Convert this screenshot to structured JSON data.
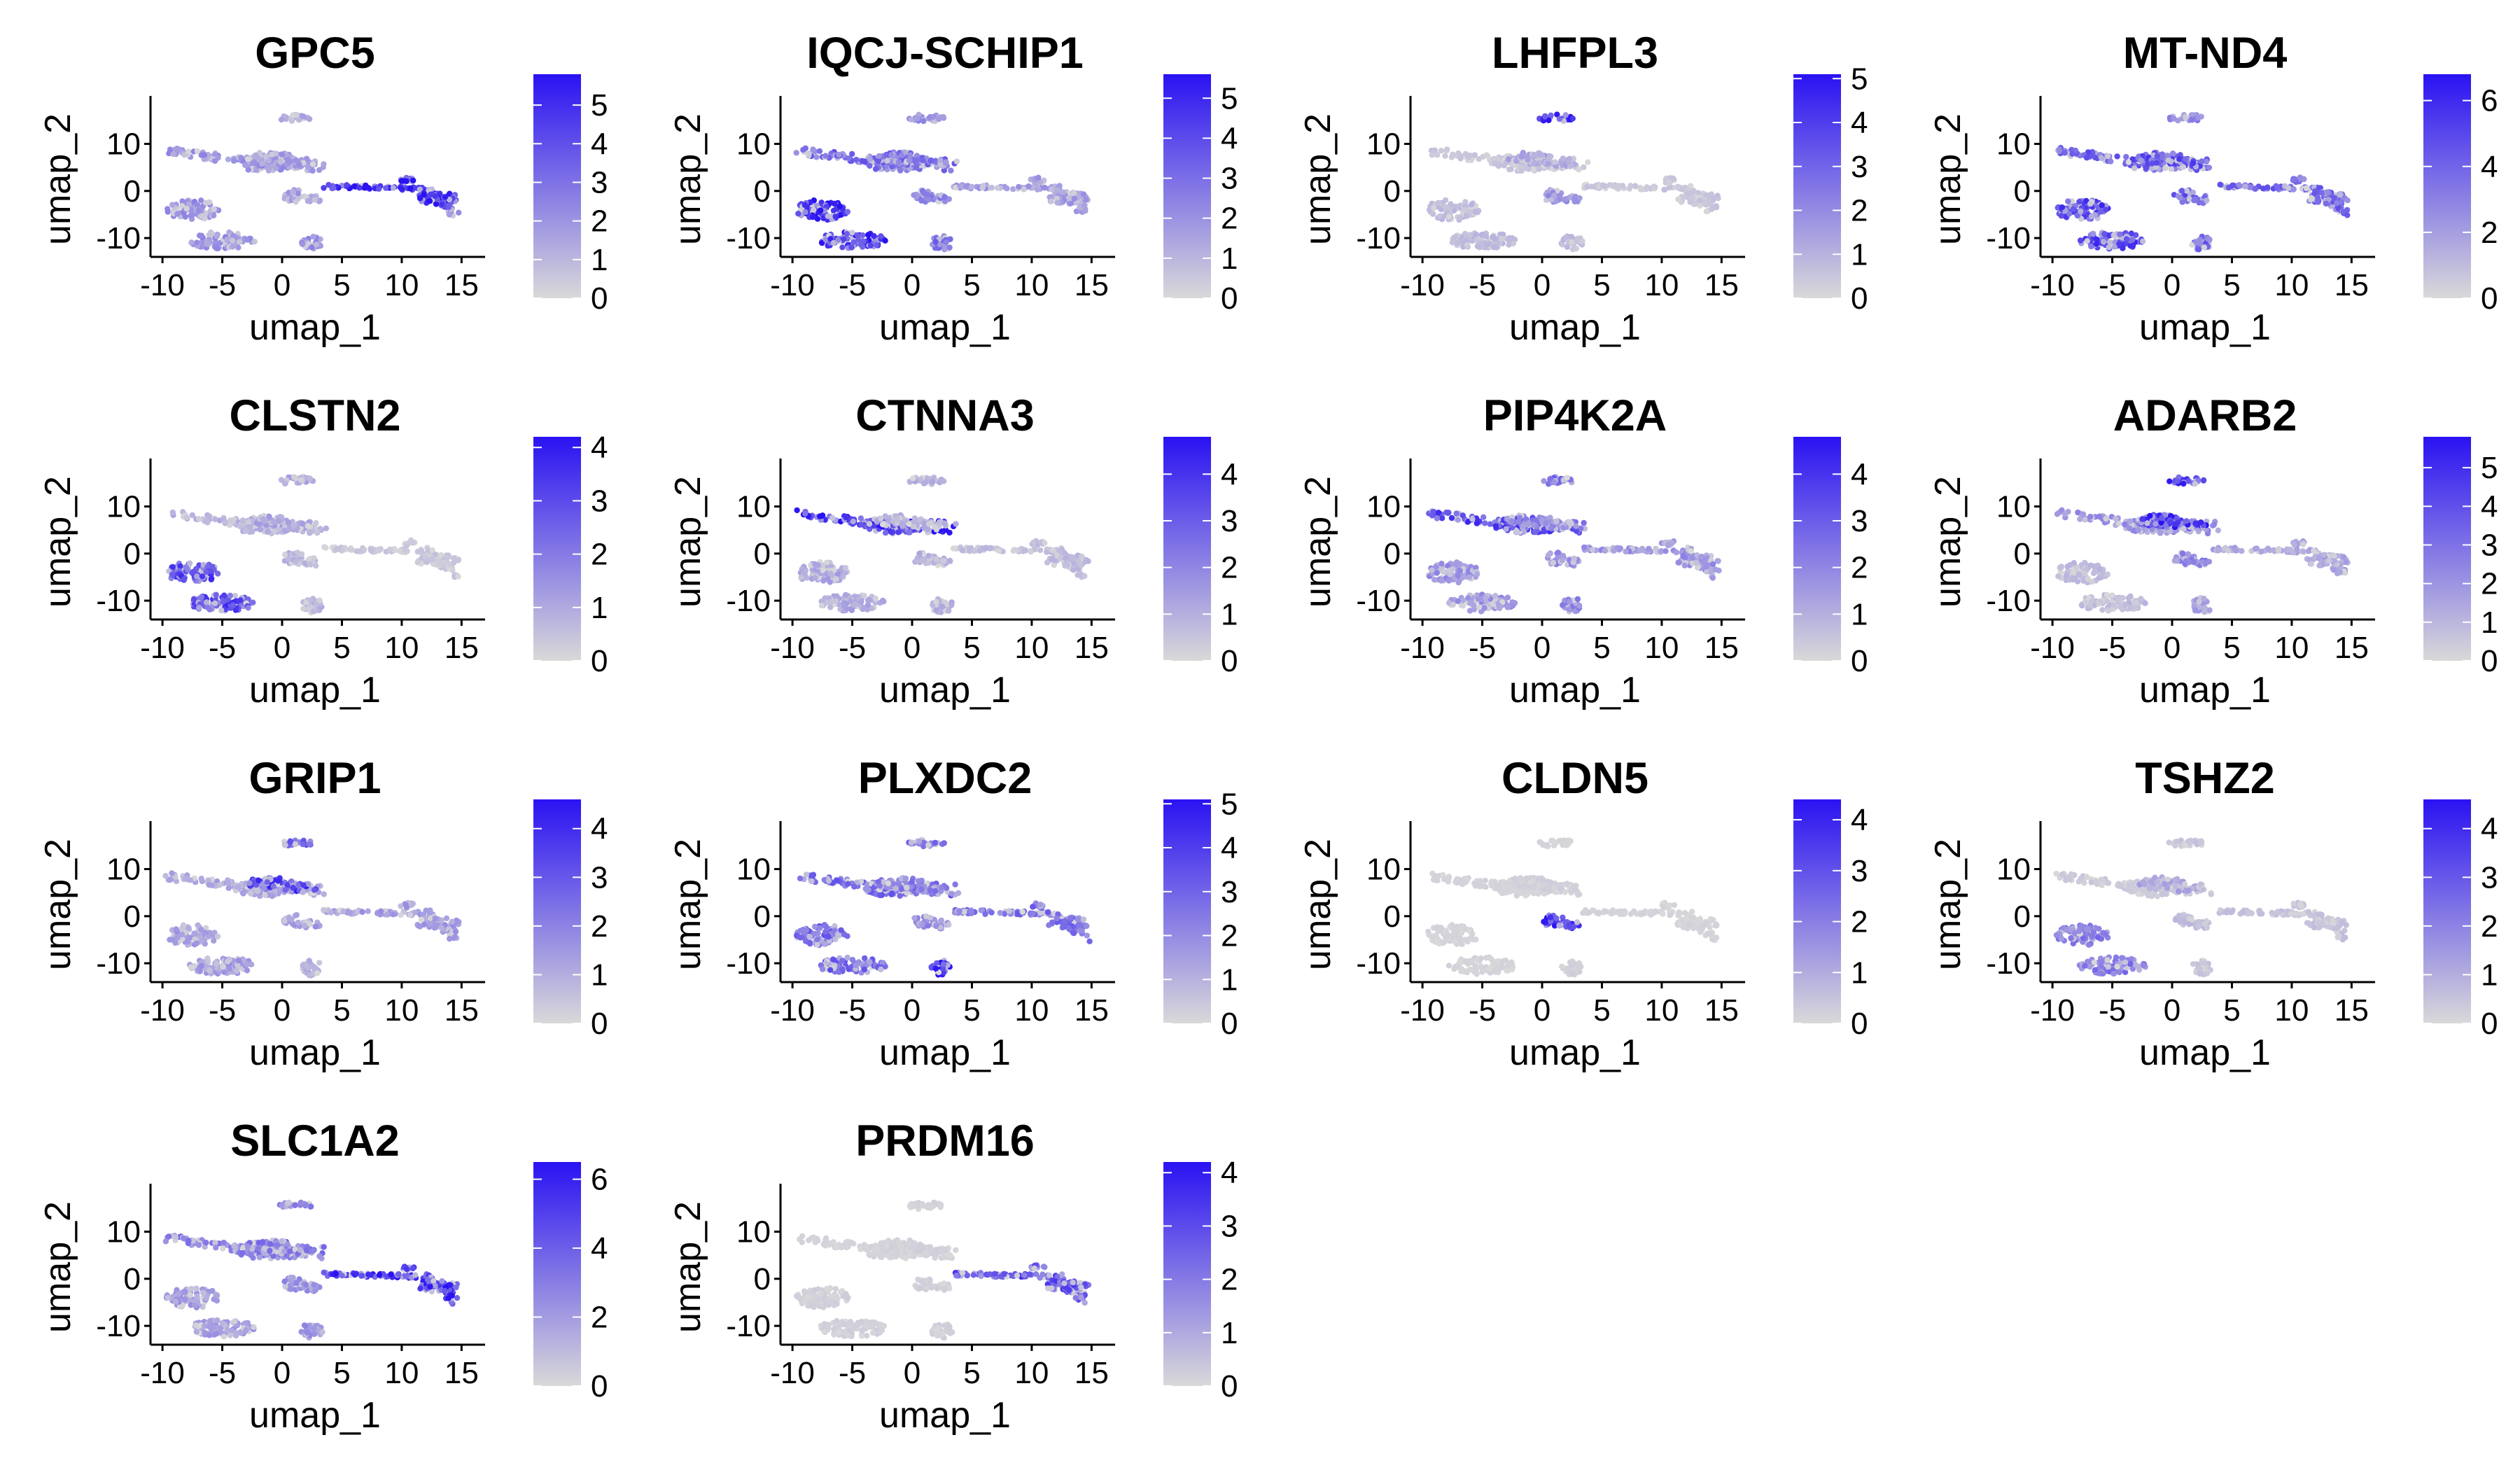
{
  "figure": {
    "colors": {
      "low": "#d9d9d9",
      "high": "#2a12f2",
      "axis": "#000000",
      "background": "#ffffff"
    }
  },
  "chart_data": [
    {
      "type": "scatter",
      "title": "GPC5",
      "xlabel": "umap_1",
      "ylabel": "umap_2",
      "xticks": [
        -10,
        -5,
        0,
        5,
        10,
        15
      ],
      "yticks": [
        -10,
        0,
        10
      ],
      "xlim": [
        -11,
        16.5
      ],
      "ylim": [
        -14,
        19
      ],
      "colorbar": {
        "max": 5.8,
        "ticks": [
          0,
          1,
          2,
          3,
          4,
          5
        ]
      },
      "expression": {
        "ctx": 0.35,
        "pairs": 0.35,
        "mid": 0.3,
        "top": 0.25,
        "small_a": 0.3,
        "small_b": 0.35,
        "tail": 0.85
      }
    },
    {
      "type": "scatter",
      "title": "IQCJ-SCHIP1",
      "xlabel": "umap_1",
      "ylabel": "umap_2",
      "xticks": [
        -10,
        -5,
        0,
        5,
        10,
        15
      ],
      "yticks": [
        -10,
        0,
        10
      ],
      "xlim": [
        -11,
        16.5
      ],
      "ylim": [
        -14,
        19
      ],
      "colorbar": {
        "max": 5.6,
        "ticks": [
          0,
          1,
          2,
          3,
          4,
          5
        ]
      },
      "expression": {
        "ctx": 0.55,
        "pairs": 0.85,
        "mid": 0.5,
        "top": 0.35,
        "small_a": 0.4,
        "small_b": 0.5,
        "tail": 0.3
      }
    },
    {
      "type": "scatter",
      "title": "LHFPL3",
      "xlabel": "umap_1",
      "ylabel": "umap_2",
      "xticks": [
        -10,
        -5,
        0,
        5,
        10,
        15
      ],
      "yticks": [
        -10,
        0,
        10
      ],
      "xlim": [
        -11,
        16.5
      ],
      "ylim": [
        -14,
        19
      ],
      "colorbar": {
        "max": 5.1,
        "ticks": [
          0,
          1,
          2,
          3,
          4,
          5
        ]
      },
      "expression": {
        "ctx": 0.1,
        "pairs": 0.15,
        "mid": 0.25,
        "top": 0.9,
        "small_a": 0.35,
        "small_b": 0.15,
        "tail": 0.1
      }
    },
    {
      "type": "scatter",
      "title": "MT-ND4",
      "xlabel": "umap_1",
      "ylabel": "umap_2",
      "xticks": [
        -10,
        -5,
        0,
        5,
        10,
        15
      ],
      "yticks": [
        -10,
        0,
        10
      ],
      "xlim": [
        -11,
        16.5
      ],
      "ylim": [
        -14,
        19
      ],
      "colorbar": {
        "max": 6.8,
        "ticks": [
          0,
          2,
          4,
          6
        ]
      },
      "expression": {
        "ctx": 0.6,
        "pairs": 0.7,
        "mid": 0.65,
        "top": 0.4,
        "small_a": 0.6,
        "small_b": 0.55,
        "tail": 0.55
      }
    },
    {
      "type": "scatter",
      "title": "CLSTN2",
      "xlabel": "umap_1",
      "ylabel": "umap_2",
      "xticks": [
        -10,
        -5,
        0,
        5,
        10,
        15
      ],
      "yticks": [
        -10,
        0,
        10
      ],
      "xlim": [
        -11,
        16.5
      ],
      "ylim": [
        -14,
        19
      ],
      "colorbar": {
        "max": 4.2,
        "ticks": [
          0,
          1,
          2,
          3,
          4
        ]
      },
      "expression": {
        "ctx": 0.2,
        "pairs": 0.7,
        "mid": 0.25,
        "top": 0.25,
        "small_a": 0.2,
        "small_b": 0.2,
        "tail": 0.1
      }
    },
    {
      "type": "scatter",
      "title": "CTNNA3",
      "xlabel": "umap_1",
      "ylabel": "umap_2",
      "xticks": [
        -10,
        -5,
        0,
        5,
        10,
        15
      ],
      "yticks": [
        -10,
        0,
        10
      ],
      "xlim": [
        -11,
        16.5
      ],
      "ylim": [
        -14,
        19
      ],
      "colorbar": {
        "max": 4.8,
        "ticks": [
          0,
          1,
          2,
          3,
          4
        ]
      },
      "expression": {
        "ctx": 0.8,
        "pairs": 0.25,
        "mid": 0.2,
        "top": 0.2,
        "small_a": 0.2,
        "small_b": 0.2,
        "tail": 0.15
      }
    },
    {
      "type": "scatter",
      "title": "PIP4K2A",
      "xlabel": "umap_1",
      "ylabel": "umap_2",
      "xticks": [
        -10,
        -5,
        0,
        5,
        10,
        15
      ],
      "yticks": [
        -10,
        0,
        10
      ],
      "xlim": [
        -11,
        16.5
      ],
      "ylim": [
        -14,
        19
      ],
      "colorbar": {
        "max": 4.8,
        "ticks": [
          0,
          1,
          2,
          3,
          4
        ]
      },
      "expression": {
        "ctx": 0.7,
        "pairs": 0.35,
        "mid": 0.4,
        "top": 0.55,
        "small_a": 0.35,
        "small_b": 0.4,
        "tail": 0.35
      }
    },
    {
      "type": "scatter",
      "title": "ADARB2",
      "xlabel": "umap_1",
      "ylabel": "umap_2",
      "xticks": [
        -10,
        -5,
        0,
        5,
        10,
        15
      ],
      "yticks": [
        -10,
        0,
        10
      ],
      "xlim": [
        -11,
        16.5
      ],
      "ylim": [
        -14,
        19
      ],
      "colorbar": {
        "max": 5.8,
        "ticks": [
          0,
          1,
          2,
          3,
          4,
          5
        ]
      },
      "expression": {
        "ctx": 0.35,
        "pairs": 0.15,
        "mid": 0.8,
        "top": 0.75,
        "small_a": 0.4,
        "small_b": 0.3,
        "tail": 0.25
      }
    },
    {
      "type": "scatter",
      "title": "GRIP1",
      "xlabel": "umap_1",
      "ylabel": "umap_2",
      "xticks": [
        -10,
        -5,
        0,
        5,
        10,
        15
      ],
      "yticks": [
        -10,
        0,
        10
      ],
      "xlim": [
        -11,
        16.5
      ],
      "ylim": [
        -14,
        19
      ],
      "colorbar": {
        "max": 4.6,
        "ticks": [
          0,
          1,
          2,
          3,
          4
        ]
      },
      "expression": {
        "ctx": 0.25,
        "pairs": 0.3,
        "mid": 0.75,
        "top": 0.55,
        "small_a": 0.3,
        "small_b": 0.2,
        "tail": 0.3
      }
    },
    {
      "type": "scatter",
      "title": "PLXDC2",
      "xlabel": "umap_1",
      "ylabel": "umap_2",
      "xticks": [
        -10,
        -5,
        0,
        5,
        10,
        15
      ],
      "yticks": [
        -10,
        0,
        10
      ],
      "xlim": [
        -11,
        16.5
      ],
      "ylim": [
        -14,
        19
      ],
      "colorbar": {
        "max": 5.1,
        "ticks": [
          0,
          1,
          2,
          3,
          4,
          5
        ]
      },
      "expression": {
        "ctx": 0.55,
        "pairs": 0.55,
        "mid": 0.45,
        "top": 0.5,
        "small_a": 0.4,
        "small_b": 0.85,
        "tail": 0.5
      }
    },
    {
      "type": "scatter",
      "title": "CLDN5",
      "xlabel": "umap_1",
      "ylabel": "umap_2",
      "xticks": [
        -10,
        -5,
        0,
        5,
        10,
        15
      ],
      "yticks": [
        -10,
        0,
        10
      ],
      "xlim": [
        -11,
        16.5
      ],
      "ylim": [
        -14,
        19
      ],
      "colorbar": {
        "max": 4.4,
        "ticks": [
          0,
          1,
          2,
          3,
          4
        ]
      },
      "expression": {
        "ctx": 0.03,
        "pairs": 0.03,
        "mid": 0.05,
        "top": 0.03,
        "small_a": 0.85,
        "small_b": 0.05,
        "tail": 0.03
      }
    },
    {
      "type": "scatter",
      "title": "TSHZ2",
      "xlabel": "umap_1",
      "ylabel": "umap_2",
      "xticks": [
        -10,
        -5,
        0,
        5,
        10,
        15
      ],
      "yticks": [
        -10,
        0,
        10
      ],
      "xlim": [
        -11,
        16.5
      ],
      "ylim": [
        -14,
        19
      ],
      "colorbar": {
        "max": 4.6,
        "ticks": [
          0,
          1,
          2,
          3,
          4
        ]
      },
      "expression": {
        "ctx": 0.08,
        "pairs": 0.45,
        "mid": 0.25,
        "top": 0.1,
        "small_a": 0.15,
        "small_b": 0.1,
        "tail": 0.12
      }
    },
    {
      "type": "scatter",
      "title": "SLC1A2",
      "xlabel": "umap_1",
      "ylabel": "umap_2",
      "xticks": [
        -10,
        -5,
        0,
        5,
        10,
        15
      ],
      "yticks": [
        -10,
        0,
        10
      ],
      "xlim": [
        -11,
        16.5
      ],
      "ylim": [
        -14,
        19
      ],
      "colorbar": {
        "max": 6.5,
        "ticks": [
          0,
          2,
          4,
          6
        ]
      },
      "expression": {
        "ctx": 0.45,
        "pairs": 0.3,
        "mid": 0.45,
        "top": 0.4,
        "small_a": 0.35,
        "small_b": 0.35,
        "tail": 0.8
      }
    },
    {
      "type": "scatter",
      "title": "PRDM16",
      "xlabel": "umap_1",
      "ylabel": "umap_2",
      "xticks": [
        -10,
        -5,
        0,
        5,
        10,
        15
      ],
      "yticks": [
        -10,
        0,
        10
      ],
      "xlim": [
        -11,
        16.5
      ],
      "ylim": [
        -14,
        19
      ],
      "colorbar": {
        "max": 4.2,
        "ticks": [
          0,
          1,
          2,
          3,
          4
        ]
      },
      "expression": {
        "ctx": 0.03,
        "pairs": 0.05,
        "mid": 0.05,
        "top": 0.04,
        "small_a": 0.05,
        "small_b": 0.05,
        "tail": 0.65
      }
    }
  ]
}
